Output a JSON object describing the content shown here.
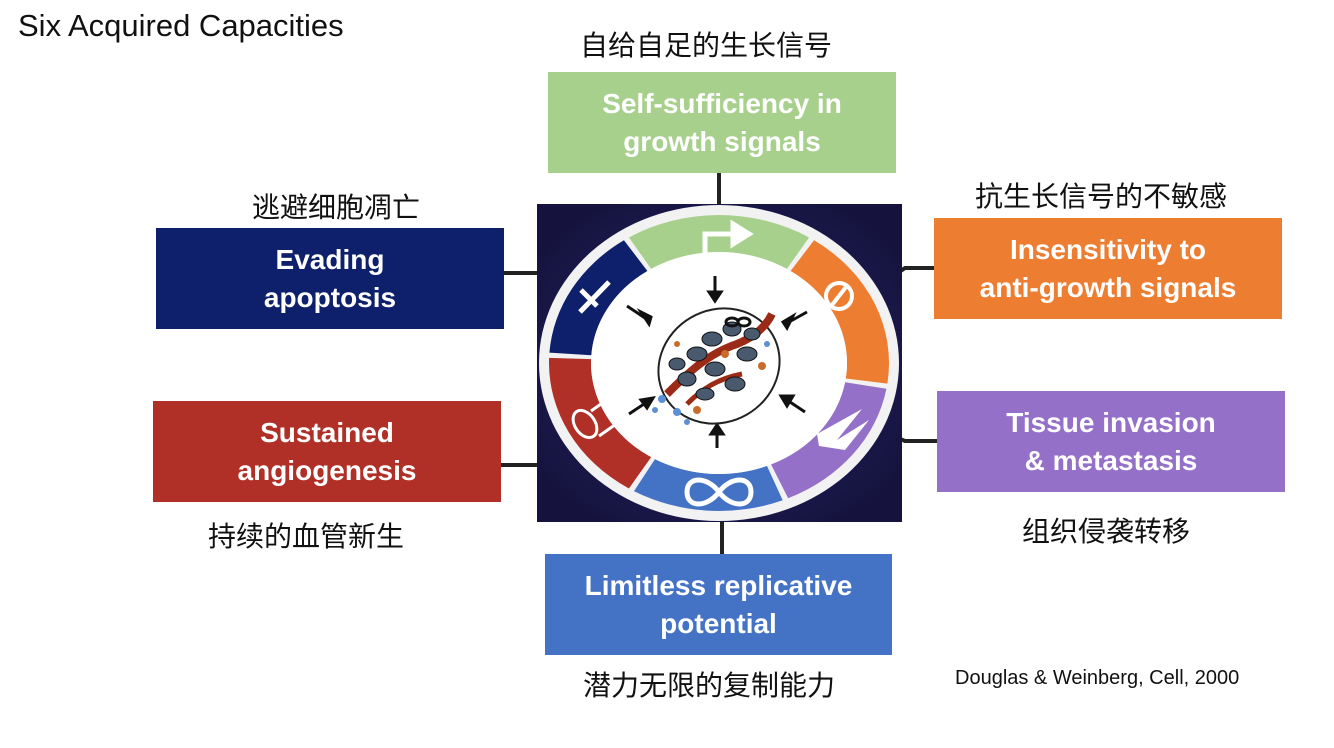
{
  "title": "Six Acquired Capacities",
  "citation": "Douglas & Weinberg, Cell, 2000",
  "colors": {
    "growth": "#a8d08d",
    "anti_growth": "#ed7d31",
    "apoptosis": "#0e1f6b",
    "angiogenesis": "#b03027",
    "invasion": "#9470c9",
    "replicative": "#4472c4"
  },
  "boxes": {
    "growth": {
      "label": "Self-sufficiency in\ngrowth signals",
      "cn": "自给自足的生长信号"
    },
    "anti_growth": {
      "label": "Insensitivity to\nanti-growth signals",
      "cn": "抗生长信号的不敏感"
    },
    "apoptosis": {
      "label": "Evading\napoptosis",
      "cn": "逃避细胞凋亡"
    },
    "angiogenesis": {
      "label": "Sustained\nangiogenesis",
      "cn": "持续的血管新生"
    },
    "invasion": {
      "label": "Tissue invasion\n& metastasis",
      "cn": "组织侵袭转移"
    },
    "replicative": {
      "label": "Limitless replicative\npotential",
      "cn": "潜力无限的复制能力"
    }
  },
  "icons": [
    "right-turn-arrow-icon",
    "stop-sign-icon",
    "dagger-cross-icon",
    "blood-vessel-tube-icon",
    "infinity-icon",
    "invasion-spikes-icon",
    "tumor-cell-cluster-icon"
  ]
}
